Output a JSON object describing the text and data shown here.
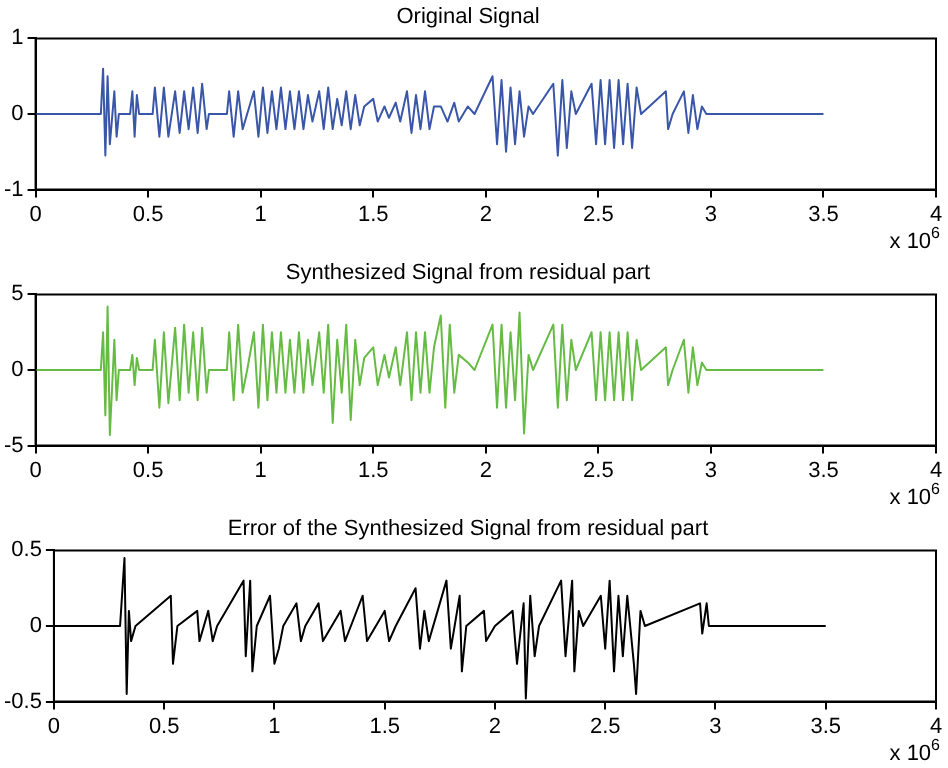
{
  "chart_data": [
    {
      "type": "line",
      "title": "Original Signal",
      "annotations": [
        "x 10$^{6}$"
      ],
      "grid": false,
      "xlim": [
        0,
        4
      ],
      "xticks": [
        0,
        0.5,
        1,
        1.5,
        2,
        2.5,
        3,
        3.5,
        4
      ],
      "ylim": [
        -1,
        1
      ],
      "yticks": [
        -1,
        0,
        1
      ],
      "series": [
        {
          "color": "#3a56a8",
          "x": [
            0,
            0.29,
            0.3,
            0.31,
            0.32,
            0.33,
            0.35,
            0.36,
            0.37,
            0.42,
            0.43,
            0.44,
            0.45,
            0.46,
            0.52,
            0.53,
            0.55,
            0.57,
            0.59,
            0.62,
            0.64,
            0.66,
            0.68,
            0.7,
            0.72,
            0.74,
            0.76,
            0.77,
            0.85,
            0.86,
            0.88,
            0.9,
            0.92,
            0.94,
            0.97,
            0.99,
            1.01,
            1.03,
            1.05,
            1.07,
            1.09,
            1.11,
            1.13,
            1.15,
            1.17,
            1.19,
            1.21,
            1.23,
            1.26,
            1.28,
            1.3,
            1.32,
            1.34,
            1.36,
            1.38,
            1.4,
            1.42,
            1.44,
            1.46,
            1.5,
            1.52,
            1.55,
            1.57,
            1.6,
            1.62,
            1.65,
            1.67,
            1.69,
            1.71,
            1.73,
            1.75,
            1.77,
            1.8,
            1.83,
            1.86,
            1.88,
            1.92,
            1.95,
            2.03,
            2.05,
            2.07,
            2.09,
            2.11,
            2.13,
            2.15,
            2.17,
            2.19,
            2.21,
            2.3,
            2.32,
            2.34,
            2.36,
            2.38,
            2.4,
            2.47,
            2.49,
            2.51,
            2.53,
            2.55,
            2.57,
            2.59,
            2.61,
            2.63,
            2.65,
            2.67,
            2.69,
            2.8,
            2.81,
            2.83,
            2.88,
            2.9,
            2.92,
            2.94,
            2.96,
            2.98,
            3.5
          ],
          "values": [
            0,
            0,
            0.6,
            -0.55,
            0.5,
            -0.4,
            0.3,
            -0.3,
            0,
            0,
            0.3,
            -0.3,
            0.25,
            0,
            0,
            0.35,
            -0.3,
            0.35,
            -0.3,
            0.3,
            -0.25,
            0.3,
            -0.2,
            0.35,
            -0.25,
            0.4,
            -0.2,
            0,
            0,
            0.3,
            -0.3,
            0.3,
            -0.2,
            0,
            0.3,
            -0.3,
            0.35,
            -0.25,
            0.3,
            -0.2,
            0.35,
            -0.2,
            0.3,
            -0.2,
            0.3,
            -0.2,
            0.25,
            -0.1,
            0.3,
            -0.2,
            0.35,
            -0.2,
            0.2,
            -0.15,
            0.3,
            -0.2,
            0.25,
            -0.15,
            0.1,
            0.2,
            -0.1,
            0.1,
            -0.05,
            0.15,
            -0.1,
            0.3,
            -0.25,
            0.25,
            -0.2,
            0.3,
            -0.2,
            0.1,
            0.1,
            -0.1,
            0.15,
            -0.1,
            0.1,
            0,
            0.5,
            -0.4,
            0.45,
            -0.5,
            0.35,
            -0.4,
            0.3,
            -0.3,
            0.1,
            0,
            0.4,
            -0.55,
            0.45,
            -0.45,
            0.3,
            0,
            0.4,
            -0.4,
            0.45,
            -0.4,
            0.45,
            -0.45,
            0.45,
            -0.4,
            0.4,
            -0.45,
            0.35,
            0,
            0.3,
            -0.2,
            0,
            0.3,
            -0.25,
            0.25,
            -0.2,
            0.1,
            0,
            0
          ]
        }
      ]
    },
    {
      "type": "line",
      "title": "Synthesized Signal from residual part",
      "annotations": [
        "x 10$^{6}$"
      ],
      "grid": false,
      "xlim": [
        0,
        4
      ],
      "xticks": [
        0,
        0.5,
        1,
        1.5,
        2,
        2.5,
        3,
        3.5,
        4
      ],
      "ylim": [
        -5,
        5
      ],
      "yticks": [
        -5,
        0,
        5
      ],
      "series": [
        {
          "color": "#66bb44",
          "x": [
            0,
            0.29,
            0.3,
            0.31,
            0.32,
            0.33,
            0.35,
            0.36,
            0.37,
            0.42,
            0.43,
            0.44,
            0.45,
            0.46,
            0.52,
            0.53,
            0.55,
            0.57,
            0.59,
            0.62,
            0.64,
            0.66,
            0.68,
            0.7,
            0.72,
            0.74,
            0.76,
            0.77,
            0.85,
            0.86,
            0.88,
            0.9,
            0.92,
            0.94,
            0.97,
            0.99,
            1.01,
            1.03,
            1.05,
            1.07,
            1.09,
            1.11,
            1.13,
            1.15,
            1.17,
            1.19,
            1.21,
            1.23,
            1.26,
            1.28,
            1.3,
            1.32,
            1.34,
            1.36,
            1.38,
            1.4,
            1.42,
            1.44,
            1.46,
            1.5,
            1.52,
            1.55,
            1.57,
            1.6,
            1.62,
            1.65,
            1.67,
            1.69,
            1.71,
            1.73,
            1.75,
            1.77,
            1.8,
            1.82,
            1.84,
            1.86,
            1.88,
            1.92,
            1.95,
            2.03,
            2.05,
            2.07,
            2.09,
            2.11,
            2.13,
            2.15,
            2.17,
            2.19,
            2.21,
            2.3,
            2.32,
            2.34,
            2.36,
            2.38,
            2.4,
            2.47,
            2.49,
            2.51,
            2.53,
            2.55,
            2.57,
            2.59,
            2.61,
            2.63,
            2.65,
            2.67,
            2.69,
            2.8,
            2.81,
            2.83,
            2.88,
            2.9,
            2.92,
            2.94,
            2.96,
            2.98,
            3.5
          ],
          "values": [
            0,
            0,
            2.5,
            -3,
            4.2,
            -4.3,
            2,
            -2,
            0,
            0,
            1,
            -1,
            0.8,
            0,
            0,
            2,
            -2.5,
            2.5,
            -2.2,
            2.8,
            -2,
            3,
            -1.5,
            2.5,
            -2,
            2.8,
            -1.5,
            0,
            0,
            2.5,
            -2,
            3,
            -1.5,
            0,
            2.5,
            -2.5,
            3,
            -2,
            2.5,
            -1.5,
            2.5,
            -1.5,
            2,
            -1.5,
            2.5,
            -1.5,
            2,
            -1,
            2.5,
            -1.5,
            3,
            -3.5,
            2,
            -1.5,
            3,
            -3.3,
            2,
            -1,
            0.8,
            1.5,
            -1,
            1,
            -0.5,
            1.5,
            -1,
            2.5,
            -2,
            2.5,
            -1.5,
            2.5,
            -1.5,
            1.5,
            3.6,
            -2.5,
            3,
            -1.5,
            1,
            0.5,
            0,
            3,
            -2.5,
            3,
            -2.5,
            2.5,
            -2,
            3.8,
            -4.2,
            1,
            0,
            3,
            -2.5,
            3,
            -2,
            2,
            0,
            2.5,
            -2,
            2.5,
            -2,
            2.5,
            -2,
            2.5,
            -2,
            2.5,
            -2,
            2,
            0,
            1.5,
            -1,
            0,
            2,
            -1.5,
            1.5,
            -1,
            0.5,
            0,
            0
          ]
        }
      ]
    },
    {
      "type": "line",
      "title": "Error of the Synthesized Signal from residual part",
      "annotations": [
        "x 10$^{6}$"
      ],
      "grid": false,
      "xlim": [
        0,
        4
      ],
      "xticks": [
        0,
        0.5,
        1,
        1.5,
        2,
        2.5,
        3,
        3.5,
        4
      ],
      "ylim": [
        -0.5,
        0.5
      ],
      "yticks": [
        -0.5,
        0,
        0.5
      ],
      "series": [
        {
          "color": "#000000",
          "x": [
            0,
            0.3,
            0.32,
            0.33,
            0.34,
            0.35,
            0.37,
            0.53,
            0.54,
            0.56,
            0.65,
            0.66,
            0.7,
            0.72,
            0.74,
            0.86,
            0.87,
            0.89,
            0.9,
            0.92,
            0.98,
            1.0,
            1.02,
            1.04,
            1.1,
            1.12,
            1.14,
            1.2,
            1.22,
            1.3,
            1.32,
            1.4,
            1.42,
            1.5,
            1.52,
            1.55,
            1.64,
            1.66,
            1.68,
            1.7,
            1.78,
            1.8,
            1.84,
            1.85,
            1.87,
            1.95,
            1.96,
            2.0,
            2.08,
            2.1,
            2.13,
            2.14,
            2.16,
            2.18,
            2.2,
            2.3,
            2.32,
            2.35,
            2.36,
            2.38,
            2.4,
            2.48,
            2.5,
            2.52,
            2.54,
            2.56,
            2.58,
            2.6,
            2.63,
            2.64,
            2.66,
            2.68,
            2.93,
            2.94,
            2.96,
            2.97,
            3.5
          ],
          "values": [
            0,
            0,
            0.45,
            -0.45,
            0.1,
            -0.1,
            0,
            0.2,
            -0.25,
            0,
            0.1,
            -0.1,
            0.1,
            -0.1,
            0,
            0.3,
            -0.2,
            0.3,
            -0.3,
            0,
            0.2,
            -0.25,
            -0.15,
            0,
            0.15,
            -0.1,
            0,
            0.15,
            -0.1,
            0.1,
            -0.1,
            0.2,
            -0.1,
            0.1,
            -0.1,
            0,
            0.25,
            -0.15,
            0.1,
            -0.1,
            0.3,
            -0.15,
            0.2,
            -0.3,
            0,
            0.1,
            -0.1,
            0,
            0.1,
            -0.25,
            0.15,
            -0.48,
            0.2,
            -0.2,
            0,
            0.3,
            -0.2,
            0.3,
            -0.3,
            0.1,
            0,
            0.2,
            -0.15,
            0.3,
            -0.3,
            0.2,
            -0.2,
            0.2,
            -0.25,
            -0.45,
            0.1,
            0,
            0.15,
            -0.05,
            0.15,
            0,
            0
          ]
        }
      ]
    }
  ]
}
